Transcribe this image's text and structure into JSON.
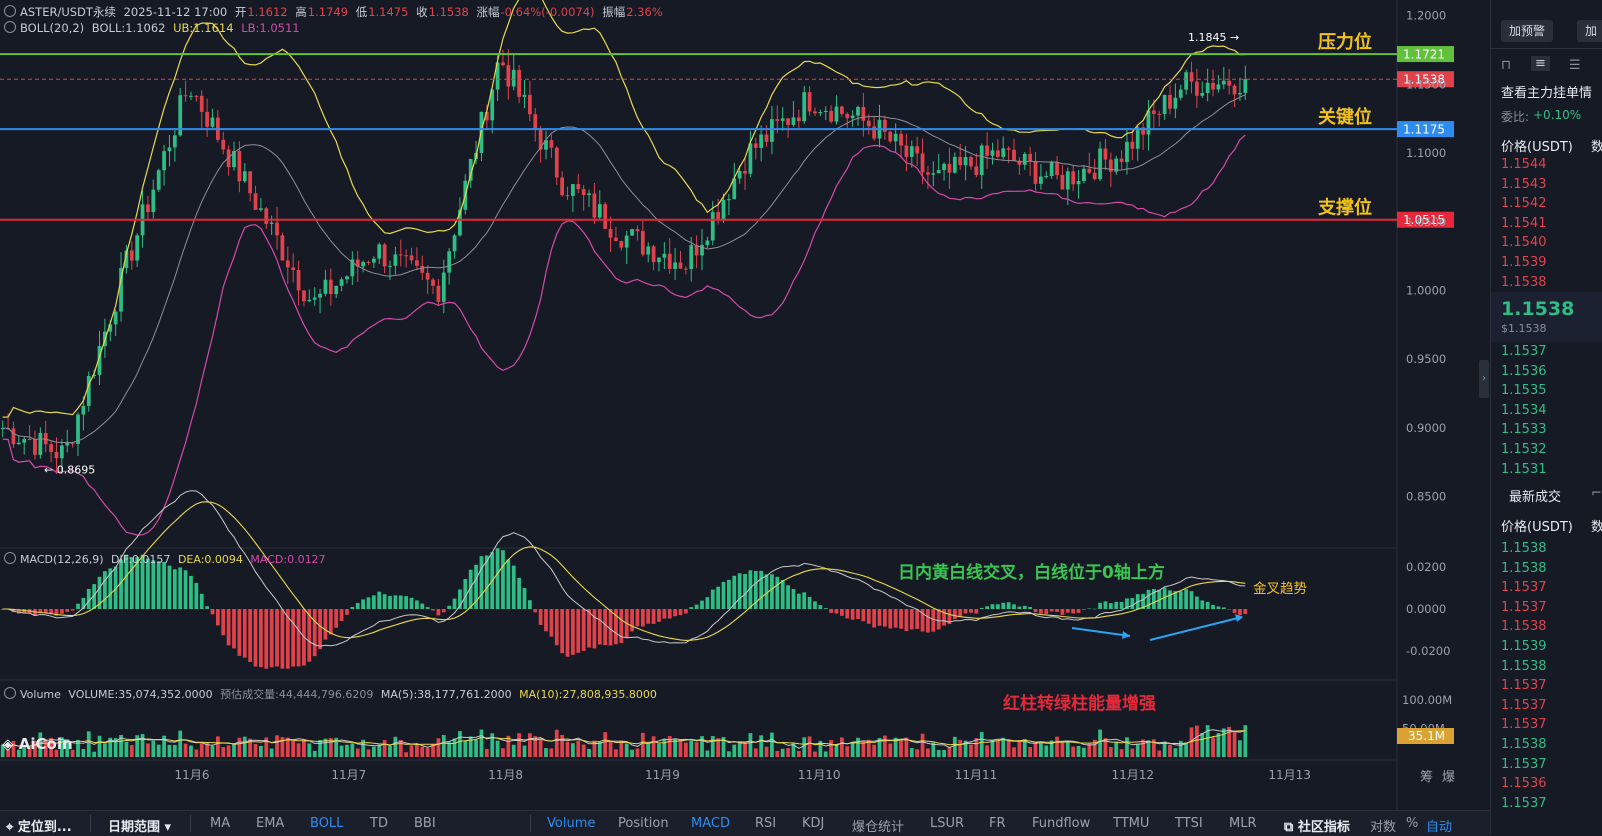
{
  "header": {
    "symbol": "ASTER/USDT永续",
    "datetime": "2025-11-12 17:00",
    "open_label": "开",
    "open": "1.1612",
    "high_label": "高",
    "high": "1.1749",
    "low_label": "低",
    "low": "1.1475",
    "close_label": "收",
    "close": "1.1538",
    "change_label": "涨幅",
    "change": "-0.64%(-0.0074)",
    "amp_label": "振幅",
    "amp": "2.36%",
    "boll_name": "BOLL(20,2)",
    "boll_mid": "BOLL:1.1062",
    "boll_ub": "UB:1.1614",
    "boll_lb": "LB:1.0511"
  },
  "macd_header": {
    "name": "MACD(12,26,9)",
    "dif": "DIF:0.0157",
    "dea": "DEA:0.0094",
    "macd": "MACD:0.0127"
  },
  "vol_header": {
    "name": "Volume",
    "volume": "VOLUME:35,074,352.0000",
    "est": "预估成交量:44,444,796.6209",
    "ma5": "MA(5):38,177,761.2000",
    "ma10": "MA(10):27,808,935.8000"
  },
  "price_axis": [
    "1.2000",
    "1.1500",
    "1.1000",
    "1.0500",
    "1.0000",
    "0.9500",
    "0.9000",
    "0.8500"
  ],
  "macd_axis": [
    "0.0200",
    "0.0000",
    "-0.0200"
  ],
  "vol_axis": [
    "100.00M",
    "50.00M"
  ],
  "date_axis": [
    "11月6",
    "11月7",
    "11月8",
    "11月9",
    "11月10",
    "11月11",
    "11月12",
    "11月13"
  ],
  "levels": {
    "resistance": {
      "label": "压力位",
      "price": "1.1721",
      "color": "#62c13a"
    },
    "key": {
      "label": "关键位",
      "price": "1.1175",
      "color": "#2e8cf0"
    },
    "support": {
      "label": "支撑位",
      "price": "1.0515",
      "color": "#e5283a"
    },
    "current": {
      "price": "1.1538",
      "color": "#e0424c"
    }
  },
  "markers": {
    "high": "1.1845",
    "low": "0.8695"
  },
  "annotations": {
    "macd_note": "日内黄白线交叉，白线位于0轴上方",
    "golden_cross": "金叉趋势",
    "vol_note": "红柱转绿柱能量增强"
  },
  "vol_badge": "35.1M",
  "logo": "AiCoin",
  "corner_labels": [
    "筹",
    "爆"
  ],
  "bottom_bar": {
    "locate": "定位到...",
    "range": "日期范围",
    "indicators": [
      "MA",
      "EMA",
      "BOLL",
      "TD",
      "BBI"
    ],
    "sub_indicators": [
      "Volume",
      "Position",
      "MACD",
      "RSI",
      "KDJ",
      "爆仓统计",
      "LSUR",
      "FR",
      "Fundflow",
      "TTMU",
      "TTSI",
      "MLR"
    ],
    "community": "社区指标",
    "log": "对数",
    "pct": "%",
    "auto": "自动"
  },
  "right_panel": {
    "buttons": [
      "加预警",
      "加"
    ],
    "title": "查看主力挂单情",
    "ratio_label": "委比:",
    "ratio": "+0.10%",
    "col_price": "价格(USDT)",
    "col_amount": "数",
    "asks": [
      "1.1544",
      "1.1543",
      "1.1542",
      "1.1541",
      "1.1540",
      "1.1539",
      "1.1538"
    ],
    "last_price": "1.1538",
    "last_usd": "$1.1538",
    "bids": [
      "1.1537",
      "1.1536",
      "1.1535",
      "1.1534",
      "1.1533",
      "1.1532",
      "1.1531"
    ],
    "trades_title": "最新成交",
    "trades": [
      {
        "p": "1.1538",
        "c": "#2fbd85"
      },
      {
        "p": "1.1538",
        "c": "#2fbd85"
      },
      {
        "p": "1.1537",
        "c": "#e0424c"
      },
      {
        "p": "1.1537",
        "c": "#e0424c"
      },
      {
        "p": "1.1538",
        "c": "#e0424c"
      },
      {
        "p": "1.1539",
        "c": "#2fbd85"
      },
      {
        "p": "1.1538",
        "c": "#2fbd85"
      },
      {
        "p": "1.1537",
        "c": "#e0424c"
      },
      {
        "p": "1.1537",
        "c": "#e0424c"
      },
      {
        "p": "1.1537",
        "c": "#e0424c"
      },
      {
        "p": "1.1538",
        "c": "#2fbd85"
      },
      {
        "p": "1.1537",
        "c": "#2fbd85"
      },
      {
        "p": "1.1536",
        "c": "#e0424c"
      },
      {
        "p": "1.1537",
        "c": "#2fbd85"
      }
    ]
  },
  "chart_data": {
    "type": "candlestick",
    "price_range": [
      0.83,
      1.21
    ],
    "key_closes": [
      0.9,
      0.88,
      1.02,
      1.15,
      1.07,
      0.99,
      1.03,
      1.0,
      1.17,
      1.08,
      1.04,
      1.02,
      1.1,
      1.14,
      1.12,
      1.08,
      1.1,
      1.08,
      1.1,
      1.15,
      1.1538
    ],
    "colors": {
      "up": "#2fbd85",
      "down": "#e0424c",
      "boll_mid": "#8e8e98",
      "boll_ub": "#e8d84a",
      "boll_lb": "#d44aa8",
      "dif": "#c9c9c9",
      "dea": "#e8d84a"
    }
  }
}
